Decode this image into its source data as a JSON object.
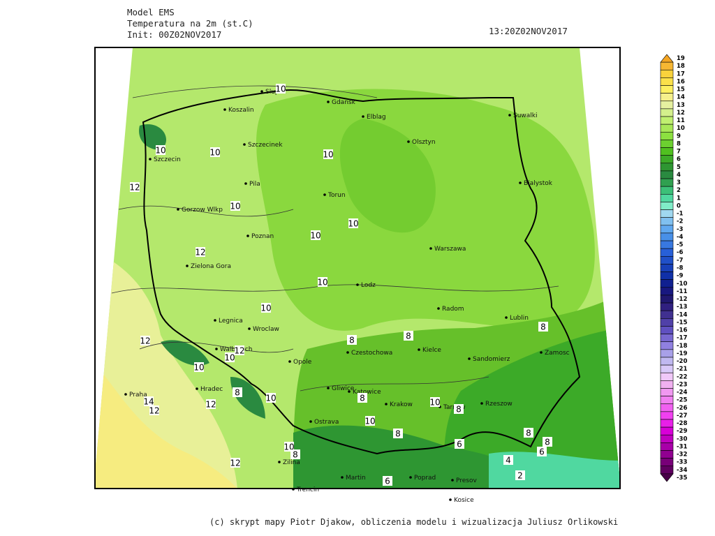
{
  "header": {
    "model": "Model EMS",
    "variable": "Temperatura na 2m (st.C)",
    "init": "Init: 00Z02NOV2017",
    "valid_time": "13:20Z02NOV2017"
  },
  "footer": "(c) skrypt mapy Piotr Djakow, obliczenia modelu i wizualizacja Juliusz Orlikowski",
  "colorbar": {
    "labels": [
      19,
      18,
      17,
      16,
      15,
      14,
      13,
      12,
      11,
      10,
      9,
      8,
      7,
      6,
      5,
      4,
      3,
      2,
      1,
      0,
      -1,
      -2,
      -3,
      -4,
      -5,
      -6,
      -7,
      -8,
      -9,
      -10,
      -11,
      -12,
      -13,
      -14,
      -15,
      -16,
      -17,
      -18,
      -19,
      -20,
      -21,
      -22,
      -23,
      -24,
      -25,
      -26,
      -27,
      -28,
      -29,
      -30,
      -31,
      -32,
      -33,
      -34,
      -35
    ],
    "colors": [
      "#f5a623",
      "#f7b733",
      "#f9d23c",
      "#fbe14a",
      "#fdf060",
      "#f5f08c",
      "#e6f0a0",
      "#d4f08c",
      "#c0f070",
      "#a8e858",
      "#8ce040",
      "#6cd030",
      "#50c020",
      "#3caa28",
      "#2e9632",
      "#2a8a40",
      "#30a050",
      "#3cc078",
      "#50d8a0",
      "#80ecc8",
      "#a0d8f0",
      "#80c0f0",
      "#60a8f0",
      "#4890e8",
      "#3878e0",
      "#2860d8",
      "#2050c8",
      "#1840b8",
      "#1030a8",
      "#102090",
      "#181880",
      "#201870",
      "#302080",
      "#403090",
      "#5040a8",
      "#6050c0",
      "#7868d0",
      "#9080e0",
      "#a8a0e8",
      "#c0b8f0",
      "#d8c8f8",
      "#f0c8f8",
      "#f0b0f0",
      "#f098f0",
      "#f080f0",
      "#f060f0",
      "#f040f0",
      "#e820e8",
      "#d800d8",
      "#c000c0",
      "#a800a8",
      "#900090",
      "#780078",
      "#600060",
      "#480048"
    ]
  },
  "cities": [
    "Slupsk",
    "Koszalin",
    "Gdansk",
    "Elblag",
    "Olsztyn",
    "Suwalki",
    "Szczecinek",
    "Szczecin",
    "Pila",
    "Torun",
    "Bialystok",
    "Gorzow Wlkp",
    "Poznan",
    "Warszawa",
    "Zielona Gora",
    "Lodz",
    "Radom",
    "Lublin",
    "Legnica",
    "Wroclaw",
    "Walbrzych",
    "Opole",
    "Czestochowa",
    "Kielce",
    "Sandomierz",
    "Zamosc",
    "Gliwice",
    "Katowice",
    "Krakow",
    "Tarnow",
    "Rzeszow",
    "Praha",
    "Hradec",
    "Ostrava",
    "Zilina",
    "Martin",
    "Poprad",
    "Presov",
    "Kosice",
    "Trencin"
  ],
  "contour_labels": [
    10,
    10,
    10,
    10,
    12,
    10,
    10,
    10,
    12,
    10,
    10,
    12,
    12,
    8,
    8,
    8,
    10,
    10,
    8,
    10,
    14,
    12,
    12,
    8,
    10,
    8,
    10,
    8,
    10,
    8,
    6,
    8,
    8,
    6,
    4,
    2,
    12,
    6
  ]
}
